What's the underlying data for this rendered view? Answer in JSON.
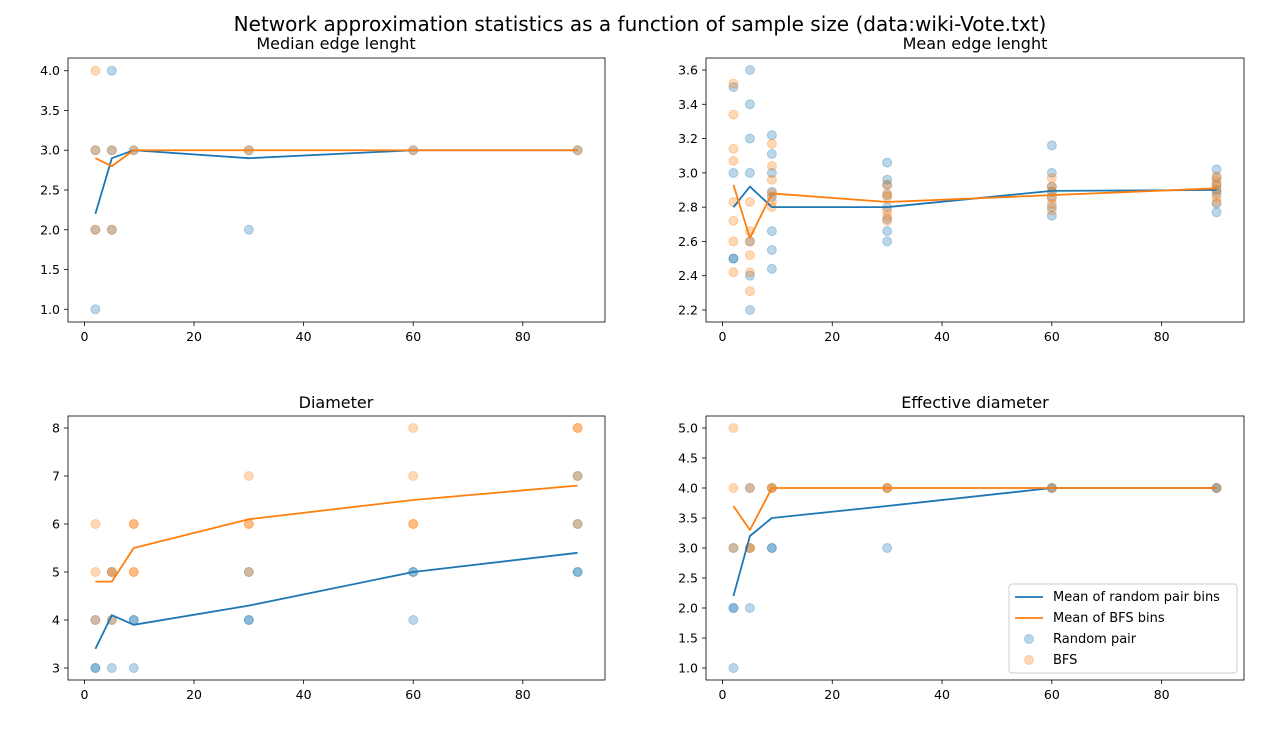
{
  "suptitle": "Network approximation statistics as a function of sample size (data:wiki-Vote.txt)",
  "colors": {
    "random": "#1f77b4",
    "bfs": "#ff7f0e"
  },
  "legend": {
    "location": "lower-right",
    "items": [
      "Mean of random pair bins",
      "Mean of BFS bins",
      "Random pair",
      "BFS"
    ]
  },
  "chart_data": [
    {
      "type": "scatter",
      "title": "Median edge lenght",
      "xlim": [
        -3,
        95
      ],
      "ylim": [
        0.84,
        4.16
      ],
      "xticks": [
        0,
        20,
        40,
        60,
        80
      ],
      "yticks": [
        1.0,
        1.5,
        2.0,
        2.5,
        3.0,
        3.5,
        4.0
      ],
      "ydec": 1,
      "x": [
        2,
        5,
        9,
        30,
        60,
        90
      ],
      "series": [
        {
          "name": "Mean of random pair bins",
          "kind": "line",
          "color": "random",
          "y": [
            2.2,
            2.9,
            3.0,
            2.9,
            3.0,
            3.0
          ]
        },
        {
          "name": "Mean of BFS bins",
          "kind": "line",
          "color": "bfs",
          "y": [
            2.9,
            2.8,
            3.0,
            3.0,
            3.0,
            3.0
          ]
        },
        {
          "name": "Random pair",
          "kind": "scatter",
          "color": "random",
          "points": [
            [
              2,
              1
            ],
            [
              2,
              2
            ],
            [
              2,
              3
            ],
            [
              5,
              2
            ],
            [
              5,
              3
            ],
            [
              5,
              4
            ],
            [
              9,
              3
            ],
            [
              30,
              2
            ],
            [
              30,
              3
            ],
            [
              60,
              3
            ],
            [
              90,
              3
            ]
          ]
        },
        {
          "name": "BFS",
          "kind": "scatter",
          "color": "bfs",
          "points": [
            [
              2,
              4
            ],
            [
              2,
              3
            ],
            [
              2,
              2
            ],
            [
              5,
              2
            ],
            [
              5,
              3
            ],
            [
              9,
              3
            ],
            [
              30,
              3
            ],
            [
              60,
              3
            ],
            [
              90,
              3
            ]
          ]
        }
      ]
    },
    {
      "type": "scatter",
      "title": "Mean edge lenght",
      "xlim": [
        -3,
        95
      ],
      "ylim": [
        2.13,
        3.67
      ],
      "xticks": [
        0,
        20,
        40,
        60,
        80
      ],
      "yticks": [
        2.2,
        2.4,
        2.6,
        2.8,
        3.0,
        3.2,
        3.4,
        3.6
      ],
      "ydec": 1,
      "x": [
        2,
        5,
        9,
        30,
        60,
        90
      ],
      "series": [
        {
          "name": "Mean of random pair bins",
          "kind": "line",
          "color": "random",
          "y": [
            2.8,
            2.92,
            2.8,
            2.8,
            2.895,
            2.9
          ]
        },
        {
          "name": "Mean of BFS bins",
          "kind": "line",
          "color": "bfs",
          "y": [
            2.93,
            2.62,
            2.88,
            2.83,
            2.87,
            2.91
          ]
        },
        {
          "name": "Random pair",
          "kind": "scatter",
          "color": "random",
          "points": [
            [
              2,
              3.5
            ],
            [
              2,
              3.0
            ],
            [
              2,
              2.5
            ],
            [
              2,
              2.5
            ],
            [
              5,
              3.6
            ],
            [
              5,
              3.4
            ],
            [
              5,
              3.2
            ],
            [
              5,
              3.0
            ],
            [
              5,
              2.6
            ],
            [
              5,
              2.4
            ],
            [
              5,
              2.2
            ],
            [
              9,
              3.22
            ],
            [
              9,
              3.11
            ],
            [
              9,
              3.0
            ],
            [
              9,
              2.89
            ],
            [
              9,
              2.86
            ],
            [
              9,
              2.66
            ],
            [
              9,
              2.55
            ],
            [
              9,
              2.44
            ],
            [
              30,
              3.06
            ],
            [
              30,
              2.96
            ],
            [
              30,
              2.93
            ],
            [
              30,
              2.87
            ],
            [
              30,
              2.8
            ],
            [
              30,
              2.73
            ],
            [
              30,
              2.66
            ],
            [
              30,
              2.6
            ],
            [
              60,
              3.16
            ],
            [
              60,
              3.0
            ],
            [
              60,
              2.92
            ],
            [
              60,
              2.89
            ],
            [
              60,
              2.86
            ],
            [
              60,
              2.8
            ],
            [
              60,
              2.75
            ],
            [
              90,
              3.02
            ],
            [
              90,
              2.97
            ],
            [
              90,
              2.93
            ],
            [
              90,
              2.9
            ],
            [
              90,
              2.88
            ],
            [
              90,
              2.82
            ],
            [
              90,
              2.77
            ]
          ]
        },
        {
          "name": "BFS",
          "kind": "scatter",
          "color": "bfs",
          "points": [
            [
              2,
              3.52
            ],
            [
              2,
              3.34
            ],
            [
              2,
              3.14
            ],
            [
              2,
              3.07
            ],
            [
              2,
              2.83
            ],
            [
              2,
              2.72
            ],
            [
              2,
              2.6
            ],
            [
              2,
              2.42
            ],
            [
              5,
              2.83
            ],
            [
              5,
              2.66
            ],
            [
              5,
              2.6
            ],
            [
              5,
              2.52
            ],
            [
              5,
              2.42
            ],
            [
              5,
              2.31
            ],
            [
              9,
              3.17
            ],
            [
              9,
              3.04
            ],
            [
              9,
              2.96
            ],
            [
              9,
              2.88
            ],
            [
              9,
              2.83
            ],
            [
              9,
              2.8
            ],
            [
              30,
              2.93
            ],
            [
              30,
              2.88
            ],
            [
              30,
              2.86
            ],
            [
              30,
              2.78
            ],
            [
              30,
              2.75
            ],
            [
              30,
              2.72
            ],
            [
              60,
              2.97
            ],
            [
              60,
              2.92
            ],
            [
              60,
              2.89
            ],
            [
              60,
              2.85
            ],
            [
              60,
              2.82
            ],
            [
              60,
              2.78
            ],
            [
              90,
              2.98
            ],
            [
              90,
              2.95
            ],
            [
              90,
              2.93
            ],
            [
              90,
              2.9
            ],
            [
              90,
              2.86
            ],
            [
              90,
              2.83
            ]
          ]
        }
      ]
    },
    {
      "type": "scatter",
      "title": "Diameter",
      "xlim": [
        -3,
        95
      ],
      "ylim": [
        2.75,
        8.25
      ],
      "xticks": [
        0,
        20,
        40,
        60,
        80
      ],
      "yticks": [
        3,
        4,
        5,
        6,
        7,
        8
      ],
      "ydec": 0,
      "x": [
        2,
        5,
        9,
        30,
        60,
        90
      ],
      "series": [
        {
          "name": "Mean of random pair bins",
          "kind": "line",
          "color": "random",
          "y": [
            3.4,
            4.1,
            3.9,
            4.3,
            5.0,
            5.4
          ]
        },
        {
          "name": "Mean of BFS bins",
          "kind": "line",
          "color": "bfs",
          "y": [
            4.8,
            4.8,
            5.5,
            6.1,
            6.5,
            6.8
          ]
        },
        {
          "name": "Random pair",
          "kind": "scatter",
          "color": "random",
          "points": [
            [
              2,
              3
            ],
            [
              2,
              3
            ],
            [
              2,
              4
            ],
            [
              5,
              3
            ],
            [
              5,
              4
            ],
            [
              5,
              5
            ],
            [
              9,
              3
            ],
            [
              9,
              4
            ],
            [
              9,
              4
            ],
            [
              30,
              4
            ],
            [
              30,
              4
            ],
            [
              30,
              5
            ],
            [
              60,
              4
            ],
            [
              60,
              5
            ],
            [
              60,
              5
            ],
            [
              90,
              5
            ],
            [
              90,
              5
            ],
            [
              90,
              6
            ],
            [
              90,
              7
            ]
          ]
        },
        {
          "name": "BFS",
          "kind": "scatter",
          "color": "bfs",
          "points": [
            [
              2,
              4
            ],
            [
              2,
              5
            ],
            [
              2,
              6
            ],
            [
              5,
              5
            ],
            [
              5,
              5
            ],
            [
              5,
              4
            ],
            [
              9,
              5
            ],
            [
              9,
              6
            ],
            [
              9,
              6
            ],
            [
              9,
              5
            ],
            [
              30,
              6
            ],
            [
              30,
              6
            ],
            [
              30,
              7
            ],
            [
              30,
              5
            ],
            [
              60,
              6
            ],
            [
              60,
              6
            ],
            [
              60,
              7
            ],
            [
              60,
              8
            ],
            [
              90,
              6
            ],
            [
              90,
              7
            ],
            [
              90,
              8
            ],
            [
              90,
              8
            ]
          ]
        }
      ]
    },
    {
      "type": "scatter",
      "title": "Effective diameter",
      "xlim": [
        -3,
        95
      ],
      "ylim": [
        0.8,
        5.2
      ],
      "xticks": [
        0,
        20,
        40,
        60,
        80
      ],
      "yticks": [
        1.0,
        1.5,
        2.0,
        2.5,
        3.0,
        3.5,
        4.0,
        4.5,
        5.0
      ],
      "ydec": 1,
      "x": [
        2,
        5,
        9,
        30,
        60,
        90
      ],
      "series": [
        {
          "name": "Mean of random pair bins",
          "kind": "line",
          "color": "random",
          "y": [
            2.2,
            3.2,
            3.5,
            3.7,
            4.0,
            4.0
          ]
        },
        {
          "name": "Mean of BFS bins",
          "kind": "line",
          "color": "bfs",
          "y": [
            3.7,
            3.3,
            4.0,
            4.0,
            4.0,
            4.0
          ]
        },
        {
          "name": "Random pair",
          "kind": "scatter",
          "color": "random",
          "points": [
            [
              2,
              1
            ],
            [
              2,
              2
            ],
            [
              2,
              2
            ],
            [
              2,
              3
            ],
            [
              5,
              2
            ],
            [
              5,
              3
            ],
            [
              5,
              4
            ],
            [
              9,
              3
            ],
            [
              9,
              3
            ],
            [
              9,
              4
            ],
            [
              30,
              3
            ],
            [
              30,
              4
            ],
            [
              60,
              4
            ],
            [
              60,
              4
            ],
            [
              90,
              4
            ],
            [
              90,
              4
            ]
          ]
        },
        {
          "name": "BFS",
          "kind": "scatter",
          "color": "bfs",
          "points": [
            [
              2,
              5
            ],
            [
              2,
              4
            ],
            [
              2,
              3
            ],
            [
              5,
              4
            ],
            [
              5,
              3
            ],
            [
              5,
              3
            ],
            [
              9,
              4
            ],
            [
              9,
              4
            ],
            [
              30,
              4
            ],
            [
              30,
              4
            ],
            [
              60,
              4
            ],
            [
              90,
              4
            ]
          ]
        }
      ]
    }
  ]
}
